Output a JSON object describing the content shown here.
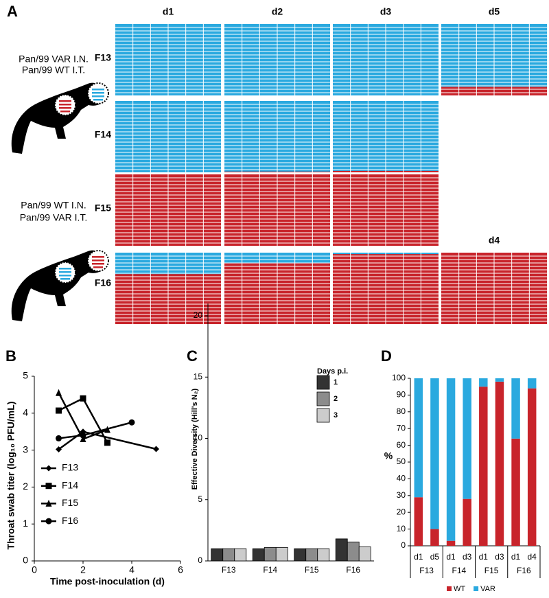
{
  "panel_labels": [
    "A",
    "B",
    "C",
    "D"
  ],
  "chart_data": [
    {
      "type": "waffle",
      "rows": [
        "F13",
        "F14",
        "F15",
        "F16"
      ],
      "columns": [
        "d1",
        "d2",
        "d3",
        "d5",
        "d4"
      ],
      "values": [
        [
          0,
          0,
          0,
          12,
          null
        ],
        [
          0,
          1,
          2,
          null,
          null
        ],
        [
          100,
          100,
          100,
          null,
          null
        ],
        [
          70,
          85,
          98,
          null,
          100
        ]
      ],
      "colors": {
        "WT": "#c8242b",
        "VAR": "#2aa9df"
      },
      "annotations": [
        {
          "text": "Pan/99 VAR I.N.",
          "color": "#2aa9df"
        },
        {
          "text": "Pan/99 WT I.T.",
          "color": "#c8242b"
        },
        {
          "text": "Pan/99 WT I.N.",
          "color": "#c8242b"
        },
        {
          "text": "Pan/99 VAR I.T.",
          "color": "#2aa9df"
        }
      ]
    },
    {
      "type": "line",
      "xlabel": "Time post-inoculation (d)",
      "ylabel": "Throat swab titer (log₁₀ PFU/mL)",
      "xlim": [
        0,
        6
      ],
      "xticks": [
        0,
        2,
        4,
        6
      ],
      "ylim": [
        0,
        5
      ],
      "yticks": [
        0,
        1,
        2,
        3,
        4,
        5
      ],
      "color": "#000000",
      "series": [
        {
          "name": "F13",
          "marker": "diamond",
          "x": [
            1,
            2,
            5
          ],
          "values": [
            3.02,
            3.5,
            3.03
          ]
        },
        {
          "name": "F14",
          "marker": "square",
          "x": [
            1,
            2,
            3
          ],
          "values": [
            4.07,
            4.4,
            3.2
          ]
        },
        {
          "name": "F15",
          "marker": "triangle",
          "x": [
            1,
            2,
            3
          ],
          "values": [
            4.55,
            3.3,
            3.55
          ]
        },
        {
          "name": "F16",
          "marker": "circle",
          "x": [
            1,
            2,
            4
          ],
          "values": [
            3.32,
            3.4,
            3.75
          ]
        }
      ]
    },
    {
      "type": "grouped_bar",
      "ylabel": "Effective Diversity (Hill's N₂)",
      "legend_title": "Days p.i.",
      "categories": [
        "F13",
        "F14",
        "F15",
        "F16"
      ],
      "ylim": [
        0,
        21
      ],
      "yticks": [
        0,
        5,
        10,
        15,
        20
      ],
      "series": [
        {
          "name": "1",
          "color": "#333333",
          "values": [
            1.0,
            1.0,
            1.0,
            1.8
          ]
        },
        {
          "name": "2",
          "color": "#8c8c8c",
          "values": [
            1.0,
            1.1,
            1.0,
            1.55
          ]
        },
        {
          "name": "3",
          "color": "#cccccc",
          "values": [
            1.0,
            1.1,
            1.0,
            1.15
          ]
        }
      ]
    },
    {
      "type": "stacked_bar",
      "ylabel": "%",
      "groups": [
        {
          "name": "F13",
          "categories": [
            "d1",
            "d5"
          ]
        },
        {
          "name": "F14",
          "categories": [
            "d1",
            "d3"
          ]
        },
        {
          "name": "F15",
          "categories": [
            "d1",
            "d3"
          ]
        },
        {
          "name": "F16",
          "categories": [
            "d1",
            "d4"
          ]
        }
      ],
      "ylim": [
        0,
        100
      ],
      "yticks": [
        0,
        10,
        20,
        30,
        40,
        50,
        60,
        70,
        80,
        90,
        100
      ],
      "series": [
        {
          "name": "WT",
          "color": "#c8242b",
          "values": [
            29,
            10,
            3,
            28,
            95,
            98,
            64,
            94
          ]
        },
        {
          "name": "VAR",
          "color": "#2aa9df",
          "values": [
            71,
            90,
            97,
            72,
            5,
            2,
            36,
            6
          ]
        }
      ]
    }
  ]
}
